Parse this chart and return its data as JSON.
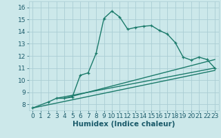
{
  "title": "",
  "xlabel": "Humidex (Indice chaleur)",
  "bg_color": "#cce8ea",
  "grid_color": "#aacdd4",
  "line_color": "#1a7a6a",
  "xlim": [
    -0.5,
    23.5
  ],
  "ylim": [
    7.5,
    16.5
  ],
  "xticks": [
    0,
    1,
    2,
    3,
    4,
    5,
    6,
    7,
    8,
    9,
    10,
    11,
    12,
    13,
    14,
    15,
    16,
    17,
    18,
    19,
    20,
    21,
    22,
    23
  ],
  "yticks": [
    8,
    9,
    10,
    11,
    12,
    13,
    14,
    15,
    16
  ],
  "series": [
    [
      0,
      7.7
    ],
    [
      2,
      8.2
    ],
    [
      3,
      8.5
    ],
    [
      4,
      8.5
    ],
    [
      5,
      8.6
    ],
    [
      6,
      10.4
    ],
    [
      7,
      10.6
    ],
    [
      8,
      12.2
    ],
    [
      9,
      15.1
    ],
    [
      10,
      15.7
    ],
    [
      11,
      15.2
    ],
    [
      12,
      14.2
    ],
    [
      13,
      14.35
    ],
    [
      14,
      14.45
    ],
    [
      15,
      14.5
    ],
    [
      16,
      14.1
    ],
    [
      17,
      13.8
    ],
    [
      18,
      13.1
    ],
    [
      19,
      11.9
    ],
    [
      20,
      11.65
    ],
    [
      21,
      11.9
    ],
    [
      22,
      11.7
    ],
    [
      23,
      11.0
    ]
  ],
  "linear_series": [
    [
      [
        0,
        7.7
      ],
      [
        23,
        10.8
      ]
    ],
    [
      [
        3,
        8.5
      ],
      [
        23,
        11.0
      ]
    ],
    [
      [
        4,
        8.5
      ],
      [
        23,
        11.7
      ]
    ]
  ],
  "tick_fontsize": 6.5,
  "label_fontsize": 7.5,
  "line_width": 1.0,
  "marker_size": 3.5
}
